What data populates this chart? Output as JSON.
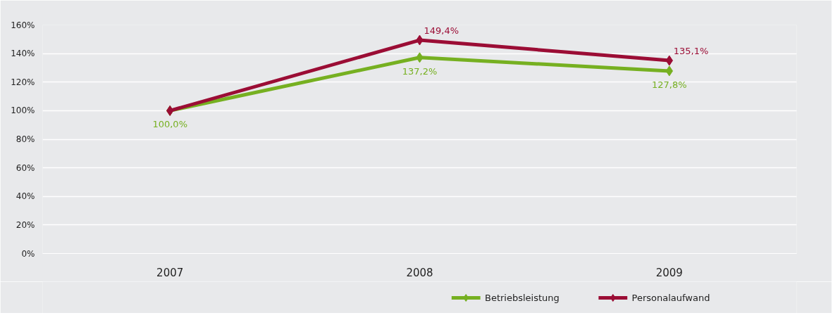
{
  "chart_data": {
    "type": "line",
    "categories": [
      "2007",
      "2008",
      "2009"
    ],
    "ylim": [
      0,
      160
    ],
    "yticks": [
      {
        "value": 0,
        "label": "0%"
      },
      {
        "value": 20,
        "label": "20%"
      },
      {
        "value": 40,
        "label": "40%"
      },
      {
        "value": 60,
        "label": "60%"
      },
      {
        "value": 80,
        "label": "80%"
      },
      {
        "value": 100,
        "label": "100%"
      },
      {
        "value": 120,
        "label": "120%"
      },
      {
        "value": 140,
        "label": "140%"
      },
      {
        "value": 160,
        "label": "160%"
      }
    ],
    "series": [
      {
        "name": "Betriebsleistung",
        "color": "#76b021",
        "values": [
          100,
          137.2,
          127.8
        ],
        "value_labels": [
          "100,0%",
          "137,2%",
          "127,8%"
        ]
      },
      {
        "name": "Personalaufwand",
        "color": "#9b0d35",
        "values": [
          100,
          149.4,
          135.1
        ],
        "value_labels": [
          null,
          "149,4%",
          "135,1%"
        ]
      }
    ],
    "grid": "y",
    "legend": "bottom right",
    "marker": "diamond",
    "line_style": "solid"
  }
}
